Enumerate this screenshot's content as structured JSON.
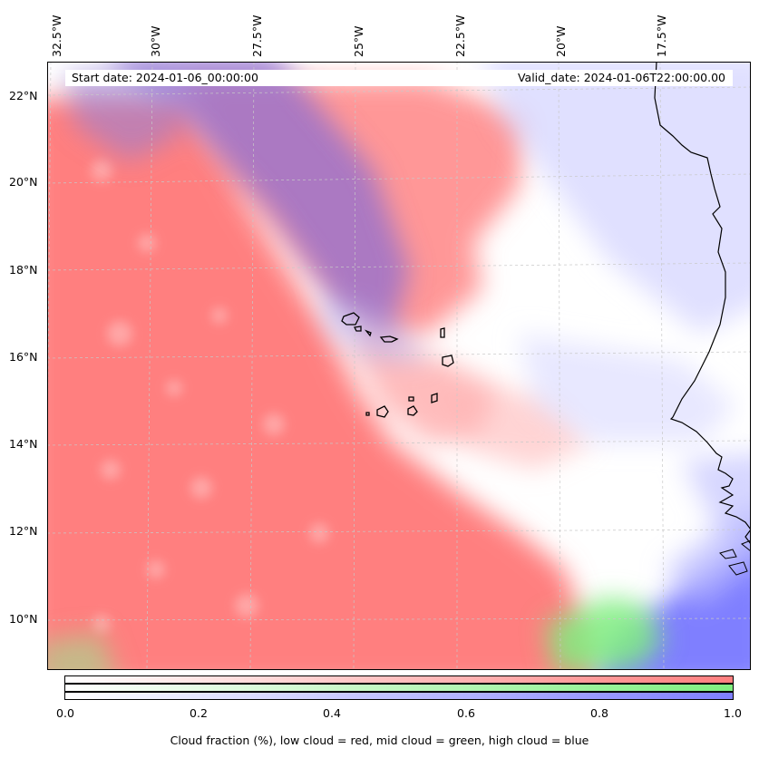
{
  "map": {
    "start_date": "Start date: 2024-01-06_00:00:00",
    "valid_date": "Valid_date: 2024-01-06T22:00:00.00",
    "lon_labels": [
      "32.5°W",
      "30°W",
      "27.5°W",
      "25°W",
      "22.5°W",
      "20°W",
      "17.5°W"
    ],
    "lat_labels": [
      "22°N",
      "20°N",
      "18°N",
      "16°N",
      "14°N",
      "12°N",
      "10°N"
    ],
    "colors": {
      "low_cloud": "#ff7f7f",
      "mid_cloud": "#7fef7f",
      "high_cloud": "#7f7fff",
      "coastline": "#000000",
      "grid": "#c8c8c8"
    }
  },
  "colorbar": {
    "ticks": [
      "0.0",
      "0.2",
      "0.4",
      "0.6",
      "0.8",
      "1.0"
    ],
    "label": "Cloud fraction (%), low cloud = red, mid cloud = green, high cloud = blue"
  }
}
